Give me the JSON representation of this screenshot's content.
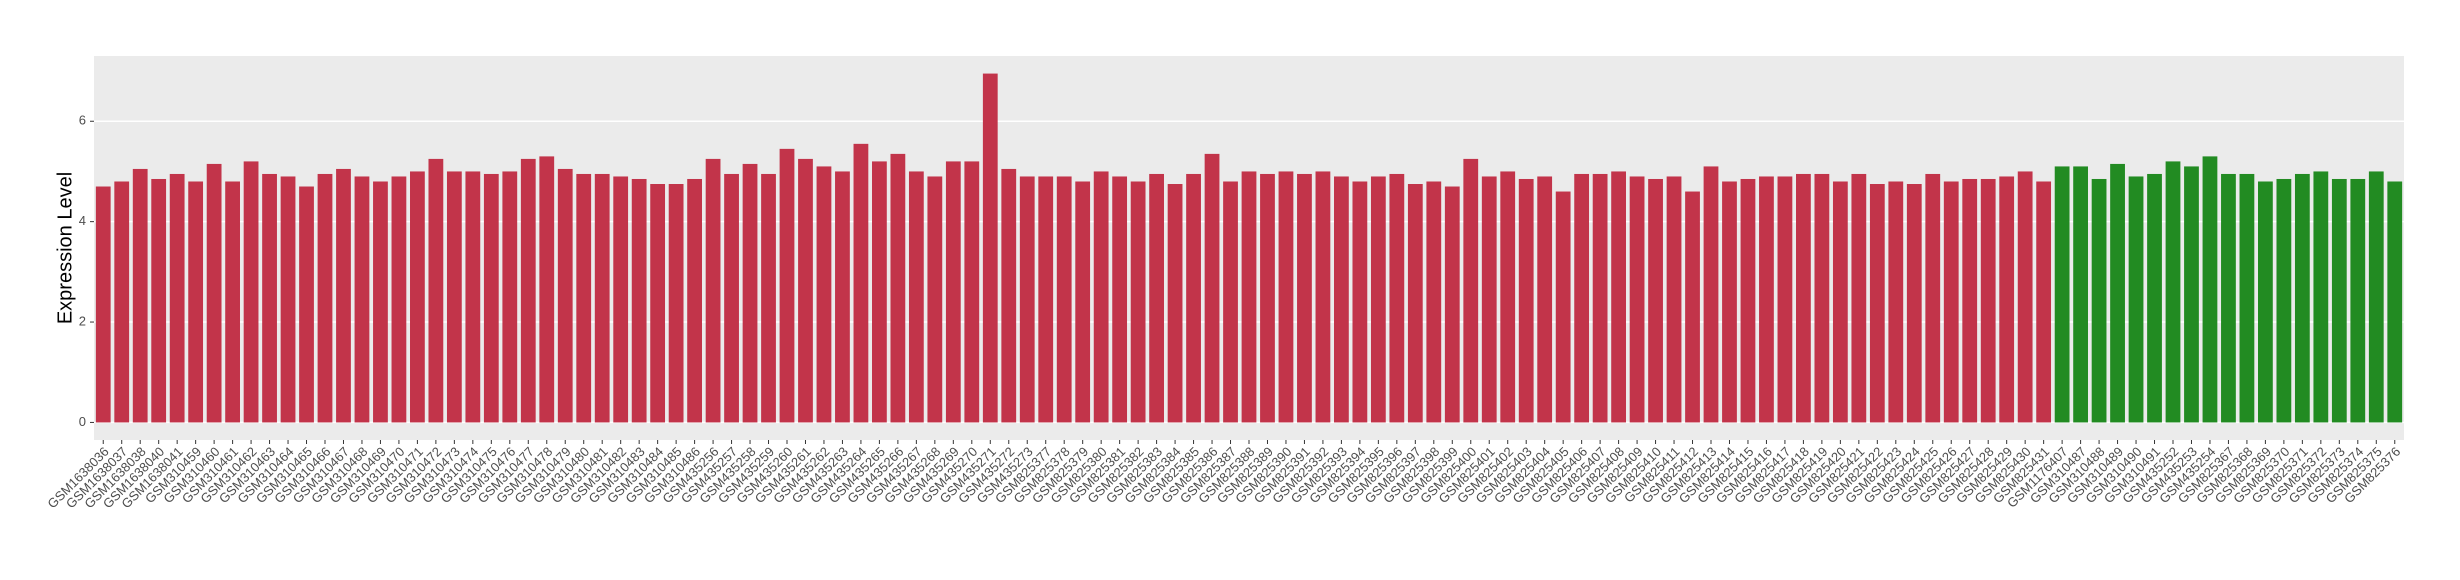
{
  "chart_data": {
    "type": "bar",
    "y_label": "Expression Level",
    "categories": [
      "GSM1638036",
      "GSM1638037",
      "GSM1638038",
      "GSM1638040",
      "GSM1638041",
      "GSM310459",
      "GSM310460",
      "GSM310461",
      "GSM310462",
      "GSM310463",
      "GSM310464",
      "GSM310465",
      "GSM310466",
      "GSM310467",
      "GSM310468",
      "GSM310469",
      "GSM310470",
      "GSM310471",
      "GSM310472",
      "GSM310473",
      "GSM310474",
      "GSM310475",
      "GSM310476",
      "GSM310477",
      "GSM310478",
      "GSM310479",
      "GSM310480",
      "GSM310481",
      "GSM310482",
      "GSM310483",
      "GSM310484",
      "GSM310485",
      "GSM310486",
      "GSM435256",
      "GSM435257",
      "GSM435258",
      "GSM435259",
      "GSM435260",
      "GSM435261",
      "GSM435262",
      "GSM435263",
      "GSM435264",
      "GSM435265",
      "GSM435266",
      "GSM435267",
      "GSM435268",
      "GSM435269",
      "GSM435270",
      "GSM435271",
      "GSM435272",
      "GSM435273",
      "GSM825377",
      "GSM825378",
      "GSM825379",
      "GSM825380",
      "GSM825381",
      "GSM825382",
      "GSM825383",
      "GSM825384",
      "GSM825385",
      "GSM825386",
      "GSM825387",
      "GSM825388",
      "GSM825389",
      "GSM825390",
      "GSM825391",
      "GSM825392",
      "GSM825393",
      "GSM825394",
      "GSM825395",
      "GSM825396",
      "GSM825397",
      "GSM825398",
      "GSM825399",
      "GSM825400",
      "GSM825401",
      "GSM825402",
      "GSM825403",
      "GSM825404",
      "GSM825405",
      "GSM825406",
      "GSM825407",
      "GSM825408",
      "GSM825409",
      "GSM825410",
      "GSM825411",
      "GSM825412",
      "GSM825413",
      "GSM825414",
      "GSM825415",
      "GSM825416",
      "GSM825417",
      "GSM825418",
      "GSM825419",
      "GSM825420",
      "GSM825421",
      "GSM825422",
      "GSM825423",
      "GSM825424",
      "GSM825425",
      "GSM825426",
      "GSM825427",
      "GSM825428",
      "GSM825429",
      "GSM825430",
      "GSM825431",
      "GSM1176407",
      "GSM310487",
      "GSM310488",
      "GSM310489",
      "GSM310490",
      "GSM310491",
      "GSM435252",
      "GSM435253",
      "GSM435254",
      "GSM825367",
      "GSM825368",
      "GSM825369",
      "GSM825370",
      "GSM825371",
      "GSM825372",
      "GSM825373",
      "GSM825374",
      "GSM825375",
      "GSM825376"
    ],
    "values": [
      4.7,
      4.8,
      5.05,
      4.85,
      4.95,
      4.8,
      5.15,
      4.8,
      5.2,
      4.95,
      4.9,
      4.7,
      4.95,
      5.05,
      4.9,
      4.8,
      4.9,
      5.0,
      5.25,
      5.0,
      5.0,
      4.95,
      5.0,
      5.25,
      5.3,
      5.05,
      4.95,
      4.95,
      4.9,
      4.85,
      4.75,
      4.75,
      4.85,
      5.25,
      4.95,
      5.15,
      4.95,
      5.45,
      5.25,
      5.1,
      5.0,
      5.55,
      5.2,
      5.35,
      5.0,
      4.9,
      5.2,
      5.2,
      6.95,
      5.05,
      4.9,
      4.9,
      4.9,
      4.8,
      5.0,
      4.9,
      4.8,
      4.95,
      4.75,
      4.95,
      5.35,
      4.8,
      5.0,
      4.95,
      5.0,
      4.95,
      5.0,
      4.9,
      4.8,
      4.9,
      4.95,
      4.75,
      4.8,
      4.7,
      5.25,
      4.9,
      5.0,
      4.85,
      4.9,
      4.6,
      4.95,
      4.95,
      5.0,
      4.9,
      4.85,
      4.9,
      4.6,
      5.1,
      4.8,
      4.85,
      4.9,
      4.9,
      4.95,
      4.95,
      4.8,
      4.95,
      4.75,
      4.8,
      4.75,
      4.95,
      4.8,
      4.85,
      4.85,
      4.9,
      5.0,
      4.8,
      5.1,
      5.1,
      4.85,
      5.15,
      4.9,
      4.95,
      5.2,
      5.1,
      5.3,
      4.95,
      4.95,
      4.8,
      4.85,
      4.95,
      5.0,
      4.85,
      4.85,
      5.0,
      4.8
    ],
    "colors": [
      "#c2344a",
      "#c2344a",
      "#c2344a",
      "#c2344a",
      "#c2344a",
      "#c2344a",
      "#c2344a",
      "#c2344a",
      "#c2344a",
      "#c2344a",
      "#c2344a",
      "#c2344a",
      "#c2344a",
      "#c2344a",
      "#c2344a",
      "#c2344a",
      "#c2344a",
      "#c2344a",
      "#c2344a",
      "#c2344a",
      "#c2344a",
      "#c2344a",
      "#c2344a",
      "#c2344a",
      "#c2344a",
      "#c2344a",
      "#c2344a",
      "#c2344a",
      "#c2344a",
      "#c2344a",
      "#c2344a",
      "#c2344a",
      "#c2344a",
      "#c2344a",
      "#c2344a",
      "#c2344a",
      "#c2344a",
      "#c2344a",
      "#c2344a",
      "#c2344a",
      "#c2344a",
      "#c2344a",
      "#c2344a",
      "#c2344a",
      "#c2344a",
      "#c2344a",
      "#c2344a",
      "#c2344a",
      "#c2344a",
      "#c2344a",
      "#c2344a",
      "#c2344a",
      "#c2344a",
      "#c2344a",
      "#c2344a",
      "#c2344a",
      "#c2344a",
      "#c2344a",
      "#c2344a",
      "#c2344a",
      "#c2344a",
      "#c2344a",
      "#c2344a",
      "#c2344a",
      "#c2344a",
      "#c2344a",
      "#c2344a",
      "#c2344a",
      "#c2344a",
      "#c2344a",
      "#c2344a",
      "#c2344a",
      "#c2344a",
      "#c2344a",
      "#c2344a",
      "#c2344a",
      "#c2344a",
      "#c2344a",
      "#c2344a",
      "#c2344a",
      "#c2344a",
      "#c2344a",
      "#c2344a",
      "#c2344a",
      "#c2344a",
      "#c2344a",
      "#c2344a",
      "#c2344a",
      "#c2344a",
      "#c2344a",
      "#c2344a",
      "#c2344a",
      "#c2344a",
      "#c2344a",
      "#c2344a",
      "#c2344a",
      "#c2344a",
      "#c2344a",
      "#c2344a",
      "#c2344a",
      "#c2344a",
      "#c2344a",
      "#c2344a",
      "#c2344a",
      "#c2344a",
      "#c2344a",
      "#228b22",
      "#228b22",
      "#228b22",
      "#228b22",
      "#228b22",
      "#228b22",
      "#228b22",
      "#228b22",
      "#228b22",
      "#228b22",
      "#228b22",
      "#228b22",
      "#228b22",
      "#228b22",
      "#228b22",
      "#228b22",
      "#228b22",
      "#228b22",
      "#228b22"
    ],
    "ylim": [
      -0.35,
      7.3
    ],
    "yticks": [
      0,
      2,
      4,
      6
    ],
    "grid": true
  }
}
